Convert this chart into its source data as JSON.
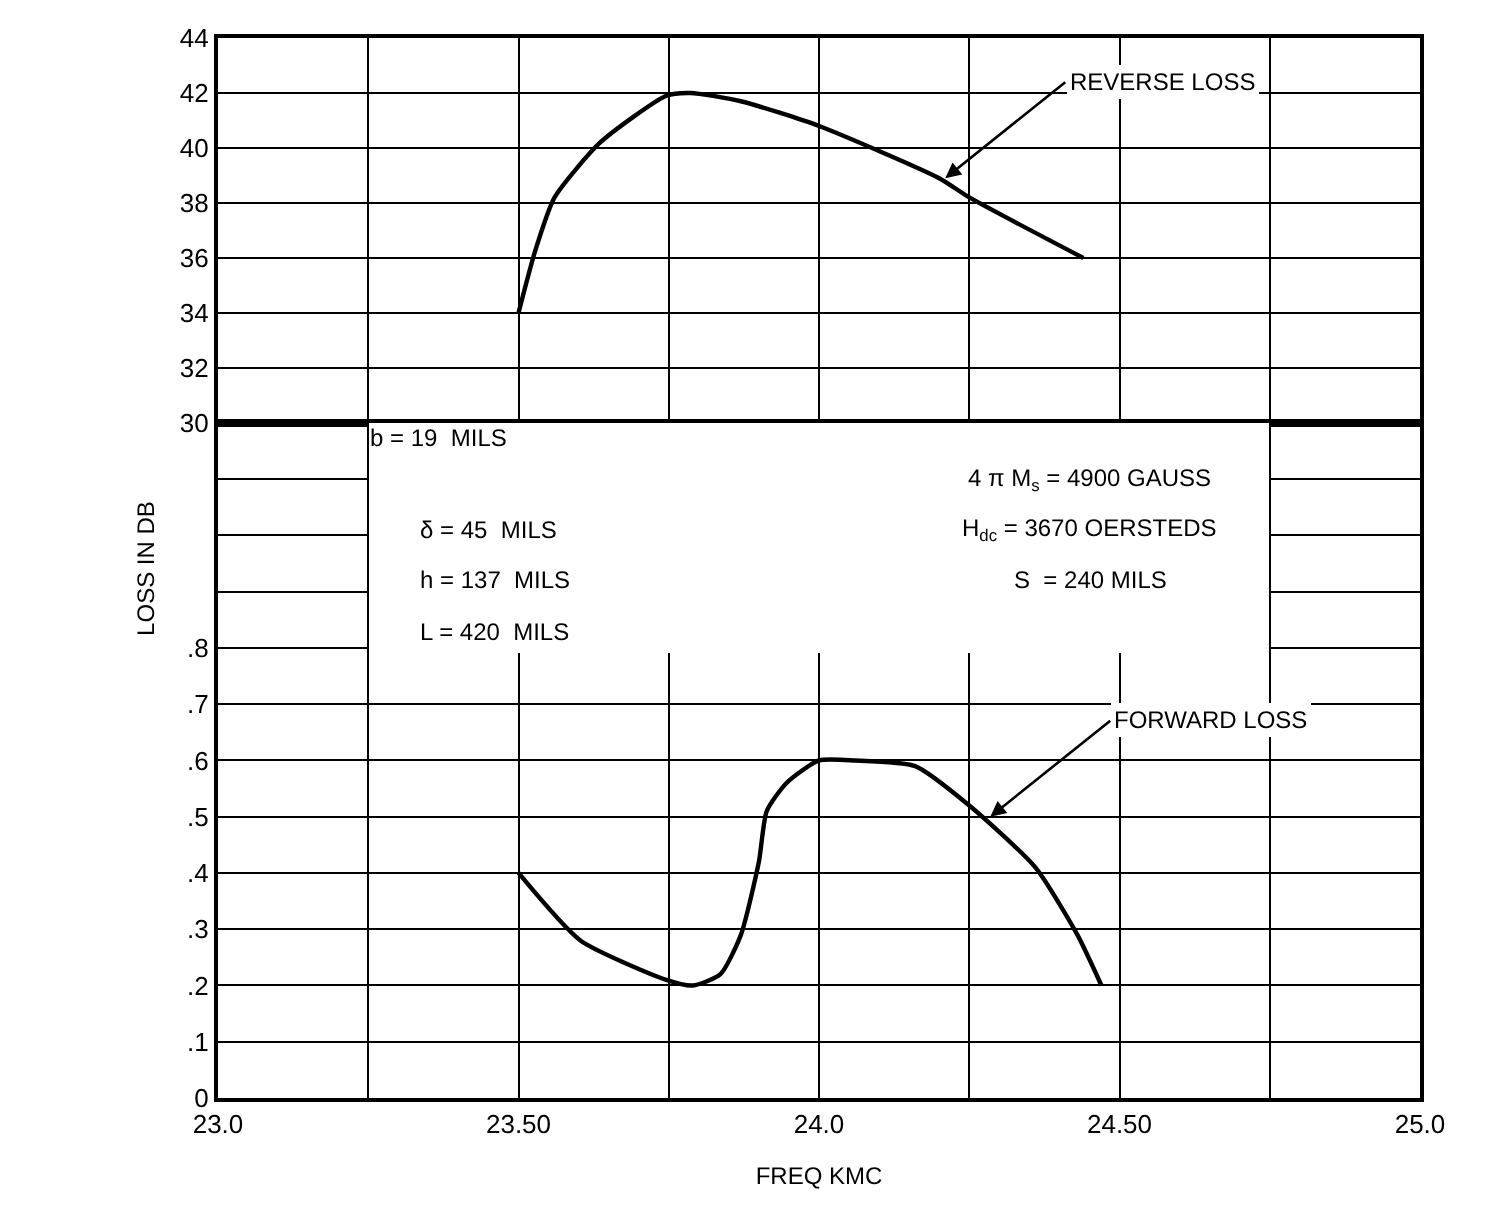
{
  "chart_data": [
    {
      "type": "line",
      "tick_labels": "y",
      "grid": true,
      "marker": "none",
      "line_style": "solid",
      "xlim": [
        23.0,
        25.0
      ],
      "xticks": [
        {
          "value": 23.0,
          "label": null
        },
        {
          "value": 23.25,
          "label": null
        },
        {
          "value": 23.5,
          "label": null
        },
        {
          "value": 23.75,
          "label": null
        },
        {
          "value": 24.0,
          "label": null
        },
        {
          "value": 24.25,
          "label": null
        },
        {
          "value": 24.5,
          "label": null
        },
        {
          "value": 24.75,
          "label": null
        },
        {
          "value": 25.0,
          "label": null
        }
      ],
      "ylim": [
        30,
        44
      ],
      "yticks": [
        30,
        32,
        34,
        36,
        38,
        40,
        42,
        44
      ],
      "annotations": [
        {
          "text": "REVERSE LOSS",
          "x": 24.21,
          "y": 38.9
        }
      ],
      "series": [
        {
          "color": "#000000",
          "x": [
            23.5,
            23.527,
            23.56,
            23.636,
            23.746,
            23.786,
            23.87,
            24.0,
            24.2,
            24.25,
            24.44
          ],
          "values": [
            34.0,
            36.2,
            38.2,
            40.2,
            41.9,
            42.0,
            41.7,
            40.8,
            38.9,
            38.2,
            36.0
          ]
        }
      ]
    },
    {
      "type": "line",
      "grid": true,
      "marker": "none",
      "line_style": "solid",
      "xlabel": "FREQ KMC",
      "ylabel": "LOSS IN DB",
      "xlim": [
        23.0,
        25.0
      ],
      "xticks": [
        {
          "value": 23.0,
          "label": "23.0"
        },
        {
          "value": 23.25,
          "label": null
        },
        {
          "value": 23.5,
          "label": "23.50"
        },
        {
          "value": 23.75,
          "label": null
        },
        {
          "value": 24.0,
          "label": "24.0"
        },
        {
          "value": 24.25,
          "label": null
        },
        {
          "value": 24.5,
          "label": "24.50"
        },
        {
          "value": 24.75,
          "label": null
        },
        {
          "value": 25.0,
          "label": "25.0"
        }
      ],
      "ylim": [
        0,
        1.2
      ],
      "yticks": [
        0,
        {
          "value": 0.1,
          "label": ".1"
        },
        {
          "value": 0.2,
          "label": ".2"
        },
        {
          "value": 0.3,
          "label": ".3"
        },
        {
          "value": 0.4,
          "label": ".4"
        },
        {
          "value": 0.5,
          "label": ".5"
        },
        {
          "value": 0.6,
          "label": ".6"
        },
        {
          "value": 0.7,
          "label": ".7"
        },
        {
          "value": 0.8,
          "label": ".8"
        },
        {
          "value": 0.9,
          "label": null
        },
        {
          "value": 1.0,
          "label": null
        },
        {
          "value": 1.1,
          "label": null
        }
      ],
      "annotations": [
        {
          "text": "FORWARD LOSS",
          "x": 24.285,
          "y": 0.5
        },
        "b = 19  MILS",
        "δ = 45  MILS",
        "h = 137  MILS",
        "L = 420  MILS",
        "4 π M$_{s}$ = 4900 GAUSS",
        "H$_{dc}$ = 3670 OERSTEDS",
        "S  = 240 MILS"
      ],
      "series": [
        {
          "color": "#000000",
          "x": [
            23.5,
            23.603,
            23.746,
            23.79,
            23.836,
            23.87,
            23.9,
            23.913,
            23.946,
            24.0,
            24.06,
            24.16,
            24.25,
            24.36,
            24.43,
            24.47
          ],
          "values": [
            0.4,
            0.28,
            0.21,
            0.2,
            0.22,
            0.29,
            0.42,
            0.51,
            0.56,
            0.6,
            0.6,
            0.59,
            0.52,
            0.41,
            0.29,
            0.2
          ]
        }
      ]
    }
  ]
}
